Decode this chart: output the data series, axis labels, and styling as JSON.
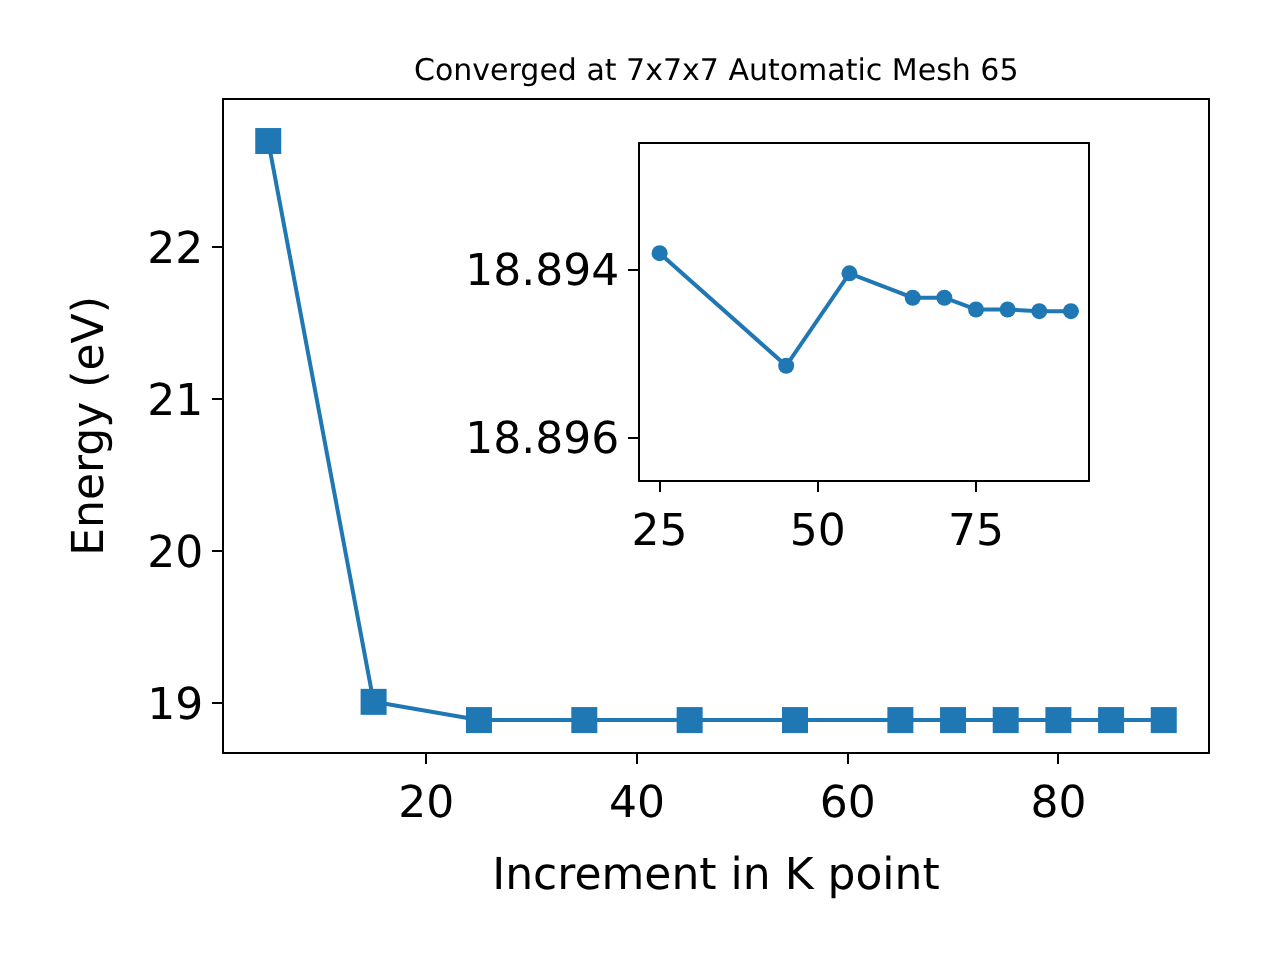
{
  "chart_data": [
    {
      "type": "line",
      "title": "Converged at 7x7x7 Automatic Mesh 65",
      "xlabel": "Increment in K point",
      "ylabel": "Energy (eV)",
      "x": [
        5,
        15,
        25,
        35,
        45,
        55,
        65,
        70,
        75,
        80,
        85,
        90
      ],
      "series": [
        {
          "color": "#1f77b4",
          "values": [
            22.7,
            19.01,
            18.89,
            18.89,
            18.89,
            18.89,
            18.89,
            18.89,
            18.89,
            18.89,
            18.89,
            18.89
          ]
        }
      ],
      "xlim": [
        0.8,
        94.2
      ],
      "xticks": [
        20,
        40,
        60,
        80
      ],
      "ylim": [
        18.68,
        22.97
      ],
      "yticks": [
        19,
        20,
        21,
        22
      ],
      "marker": "square",
      "line_style": "solid"
    },
    {
      "type": "line",
      "x": [
        25,
        45,
        55,
        65,
        70,
        75,
        80,
        85,
        90
      ],
      "series": [
        {
          "color": "#1f77b4",
          "values": [
            18.8938,
            18.89514,
            18.89404,
            18.89433,
            18.89433,
            18.89447,
            18.89447,
            18.89449,
            18.89449
          ]
        }
      ],
      "xlim": [
        21.9,
        92.7
      ],
      "xticks": [
        25,
        50,
        75
      ],
      "ylim": [
        18.8965,
        18.8925
      ],
      "yticks": [
        18.894,
        18.896
      ],
      "marker": "circle",
      "line_style": "solid"
    }
  ]
}
